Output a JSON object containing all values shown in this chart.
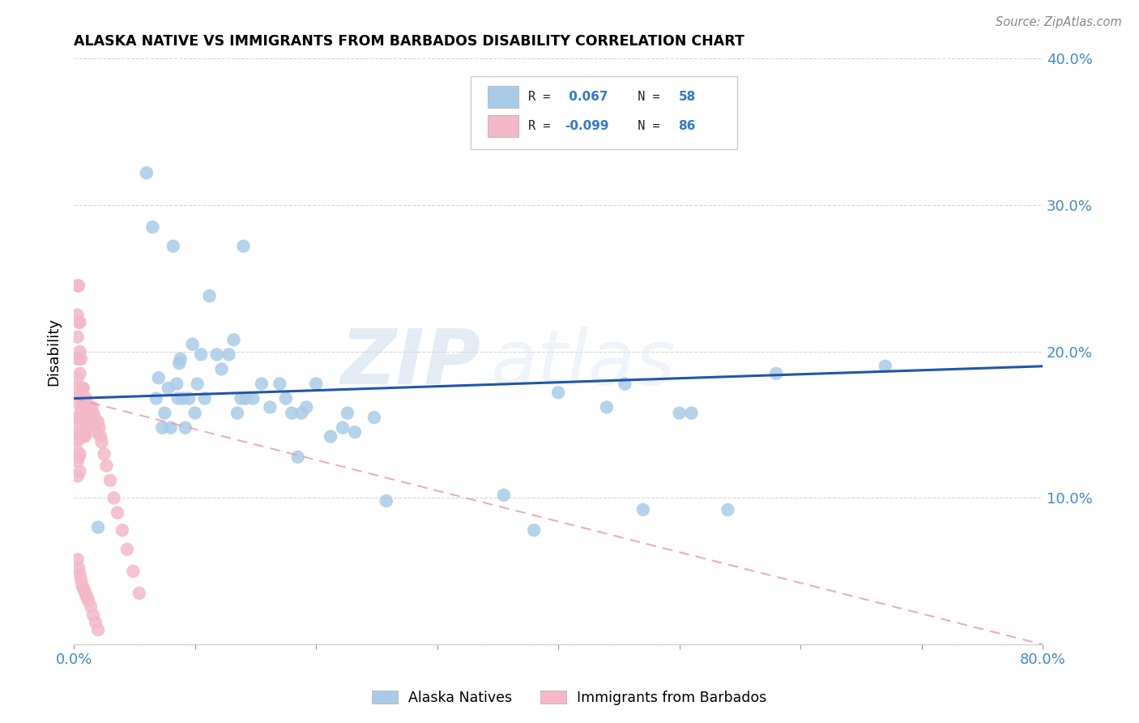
{
  "title": "ALASKA NATIVE VS IMMIGRANTS FROM BARBADOS DISABILITY CORRELATION CHART",
  "source": "Source: ZipAtlas.com",
  "ylabel": "Disability",
  "xlim": [
    0.0,
    0.8
  ],
  "ylim": [
    0.0,
    0.4
  ],
  "xtick_positions": [
    0.0,
    0.1,
    0.2,
    0.3,
    0.4,
    0.5,
    0.6,
    0.7,
    0.8
  ],
  "ytick_positions": [
    0.0,
    0.1,
    0.2,
    0.3,
    0.4
  ],
  "legend_r_blue": "0.067",
  "legend_n_blue": "58",
  "legend_r_pink": "-0.099",
  "legend_n_pink": "86",
  "legend_label_blue": "Alaska Natives",
  "legend_label_pink": "Immigrants from Barbados",
  "blue_color": "#a8cce8",
  "pink_color": "#f4b8c8",
  "trendline_blue_color": "#2255aa",
  "trendline_pink_color": "#e899aa",
  "watermark_zip": "ZIP",
  "watermark_atlas": "atlas",
  "background_color": "#ffffff",
  "grid_color": "#cccccc",
  "blue_x": [
    0.02,
    0.06,
    0.065,
    0.068,
    0.07,
    0.073,
    0.075,
    0.078,
    0.08,
    0.082,
    0.085,
    0.086,
    0.087,
    0.088,
    0.09,
    0.092,
    0.095,
    0.098,
    0.1,
    0.102,
    0.105,
    0.108,
    0.112,
    0.118,
    0.122,
    0.128,
    0.132,
    0.135,
    0.138,
    0.14,
    0.142,
    0.148,
    0.155,
    0.162,
    0.17,
    0.175,
    0.18,
    0.185,
    0.188,
    0.192,
    0.2,
    0.212,
    0.222,
    0.226,
    0.232,
    0.248,
    0.258,
    0.355,
    0.38,
    0.4,
    0.44,
    0.455,
    0.47,
    0.5,
    0.51,
    0.54,
    0.58,
    0.67
  ],
  "blue_y": [
    0.08,
    0.322,
    0.285,
    0.168,
    0.182,
    0.148,
    0.158,
    0.175,
    0.148,
    0.272,
    0.178,
    0.168,
    0.192,
    0.195,
    0.168,
    0.148,
    0.168,
    0.205,
    0.158,
    0.178,
    0.198,
    0.168,
    0.238,
    0.198,
    0.188,
    0.198,
    0.208,
    0.158,
    0.168,
    0.272,
    0.168,
    0.168,
    0.178,
    0.162,
    0.178,
    0.168,
    0.158,
    0.128,
    0.158,
    0.162,
    0.178,
    0.142,
    0.148,
    0.158,
    0.145,
    0.155,
    0.098,
    0.102,
    0.078,
    0.172,
    0.162,
    0.178,
    0.092,
    0.158,
    0.158,
    0.092,
    0.185,
    0.19
  ],
  "pink_x": [
    0.003,
    0.003,
    0.003,
    0.003,
    0.003,
    0.003,
    0.003,
    0.003,
    0.003,
    0.003,
    0.003,
    0.003,
    0.003,
    0.004,
    0.004,
    0.004,
    0.004,
    0.004,
    0.004,
    0.004,
    0.005,
    0.005,
    0.005,
    0.005,
    0.005,
    0.005,
    0.005,
    0.005,
    0.006,
    0.006,
    0.006,
    0.006,
    0.007,
    0.007,
    0.007,
    0.007,
    0.008,
    0.008,
    0.008,
    0.008,
    0.009,
    0.009,
    0.009,
    0.01,
    0.01,
    0.01,
    0.011,
    0.011,
    0.012,
    0.012,
    0.013,
    0.013,
    0.014,
    0.015,
    0.015,
    0.016,
    0.017,
    0.018,
    0.019,
    0.02,
    0.021,
    0.022,
    0.023,
    0.025,
    0.027,
    0.03,
    0.033,
    0.036,
    0.04,
    0.044,
    0.049,
    0.054,
    0.003,
    0.004,
    0.005,
    0.006,
    0.007,
    0.008,
    0.009,
    0.01,
    0.011,
    0.012,
    0.014,
    0.016,
    0.018,
    0.02
  ],
  "pink_y": [
    0.245,
    0.225,
    0.21,
    0.195,
    0.182,
    0.175,
    0.165,
    0.155,
    0.148,
    0.14,
    0.132,
    0.125,
    0.115,
    0.245,
    0.22,
    0.195,
    0.17,
    0.155,
    0.14,
    0.128,
    0.22,
    0.2,
    0.185,
    0.17,
    0.155,
    0.142,
    0.13,
    0.118,
    0.195,
    0.175,
    0.16,
    0.145,
    0.175,
    0.165,
    0.155,
    0.145,
    0.175,
    0.165,
    0.155,
    0.142,
    0.165,
    0.155,
    0.142,
    0.168,
    0.158,
    0.145,
    0.162,
    0.15,
    0.162,
    0.15,
    0.162,
    0.15,
    0.158,
    0.162,
    0.15,
    0.158,
    0.155,
    0.15,
    0.145,
    0.152,
    0.148,
    0.142,
    0.138,
    0.13,
    0.122,
    0.112,
    0.1,
    0.09,
    0.078,
    0.065,
    0.05,
    0.035,
    0.058,
    0.052,
    0.048,
    0.044,
    0.04,
    0.038,
    0.036,
    0.034,
    0.032,
    0.03,
    0.026,
    0.02,
    0.015,
    0.01
  ],
  "blue_trend_x0": 0.0,
  "blue_trend_x1": 0.8,
  "blue_trend_y0": 0.168,
  "blue_trend_y1": 0.19,
  "pink_trend_x0": 0.0,
  "pink_trend_x1": 0.8,
  "pink_trend_y0": 0.168,
  "pink_trend_y1": 0.0
}
